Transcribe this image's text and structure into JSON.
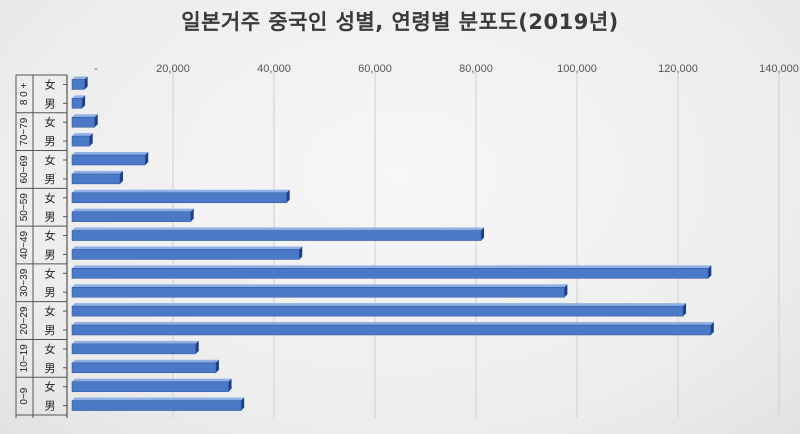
{
  "chart_data": {
    "type": "bar",
    "orientation": "horizontal",
    "title": "일본거주 중국인 성별, 연령별 분포도(2019년)",
    "xlim": [
      0,
      140000
    ],
    "x_ticks": [
      "-",
      "20,000",
      "40,000",
      "60,000",
      "80,000",
      "100,000",
      "120,000",
      "140,000"
    ],
    "grid": true,
    "groups": [
      {
        "age": "8 0 +",
        "bars": [
          {
            "sex": "女",
            "value": 2500
          },
          {
            "sex": "男",
            "value": 2000
          }
        ]
      },
      {
        "age": "70~79",
        "bars": [
          {
            "sex": "女",
            "value": 4500
          },
          {
            "sex": "男",
            "value": 3500
          }
        ]
      },
      {
        "age": "60~69",
        "bars": [
          {
            "sex": "女",
            "value": 14500
          },
          {
            "sex": "男",
            "value": 9500
          }
        ]
      },
      {
        "age": "50~59",
        "bars": [
          {
            "sex": "女",
            "value": 42500
          },
          {
            "sex": "男",
            "value": 23500
          }
        ]
      },
      {
        "age": "40~49",
        "bars": [
          {
            "sex": "女",
            "value": 81000
          },
          {
            "sex": "男",
            "value": 45000
          }
        ]
      },
      {
        "age": "30~39",
        "bars": [
          {
            "sex": "女",
            "value": 126000
          },
          {
            "sex": "男",
            "value": 97500
          }
        ]
      },
      {
        "age": "20~29",
        "bars": [
          {
            "sex": "女",
            "value": 121000
          },
          {
            "sex": "男",
            "value": 126500
          }
        ]
      },
      {
        "age": "10~19",
        "bars": [
          {
            "sex": "女",
            "value": 24500
          },
          {
            "sex": "男",
            "value": 28500
          }
        ]
      },
      {
        "age": "0~9",
        "bars": [
          {
            "sex": "女",
            "value": 31000
          },
          {
            "sex": "男",
            "value": 33500
          }
        ]
      }
    ],
    "colors": {
      "bar_front": "#4a79c8",
      "bar_top": "#8fb0e6",
      "bar_side": "#1f3f7c",
      "gridline": "#cfcfcf"
    }
  }
}
